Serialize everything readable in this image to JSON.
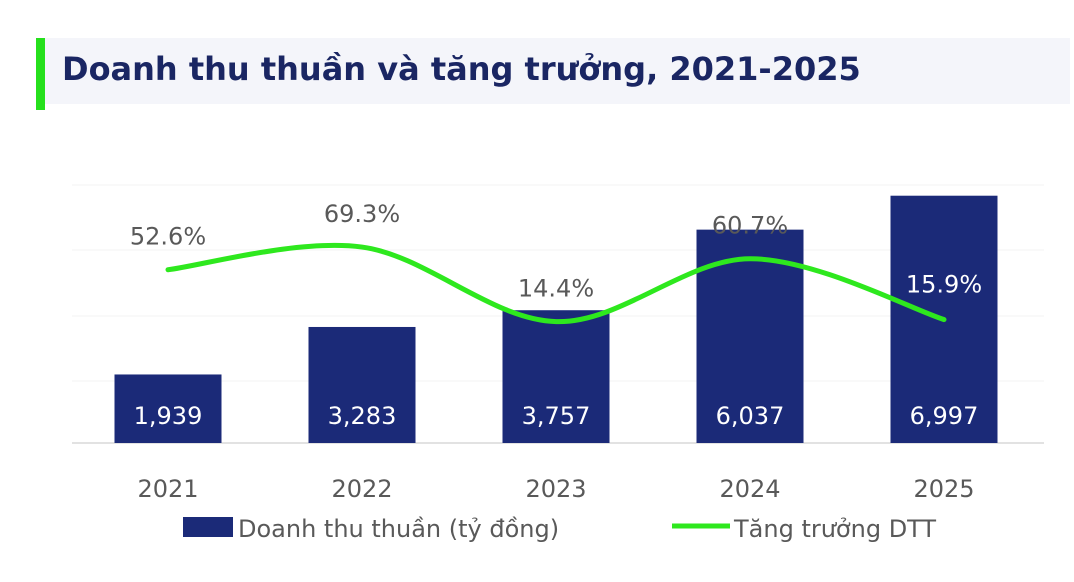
{
  "title": "Doanh thu thuần và tăng trưởng, 2021-2025",
  "colors": {
    "bar": "#1b2a78",
    "line": "#2ee81e",
    "accent": "#25e01c",
    "title": "#1a2663"
  },
  "legend": {
    "bar_label": "Doanh thu thuần (tỷ đồng)",
    "line_label": "Tăng trưởng DTT",
    "position": "bottom"
  },
  "chart_data": {
    "type": "bar",
    "categories": [
      "2021",
      "2022",
      "2023",
      "2024",
      "2025"
    ],
    "series": [
      {
        "name": "Doanh thu thuần (tỷ đồng)",
        "type": "bar",
        "values": [
          1939,
          3283,
          3757,
          6037,
          6997
        ],
        "labels": [
          "1,939",
          "3,283",
          "3,757",
          "6,037",
          "6,997"
        ]
      },
      {
        "name": "Tăng trưởng DTT",
        "type": "line",
        "values": [
          52.6,
          69.3,
          14.4,
          60.7,
          15.9
        ],
        "labels": [
          "52.6%",
          "69.3%",
          "14.4%",
          "60.7%",
          "15.9%"
        ]
      }
    ],
    "title": "Doanh thu thuần và tăng trưởng, 2021-2025",
    "xlabel": "",
    "ylabel": "",
    "ylim": [
      0,
      7300
    ],
    "y2lim": [
      -75,
      115
    ],
    "grid": false,
    "legend": "bottom"
  }
}
